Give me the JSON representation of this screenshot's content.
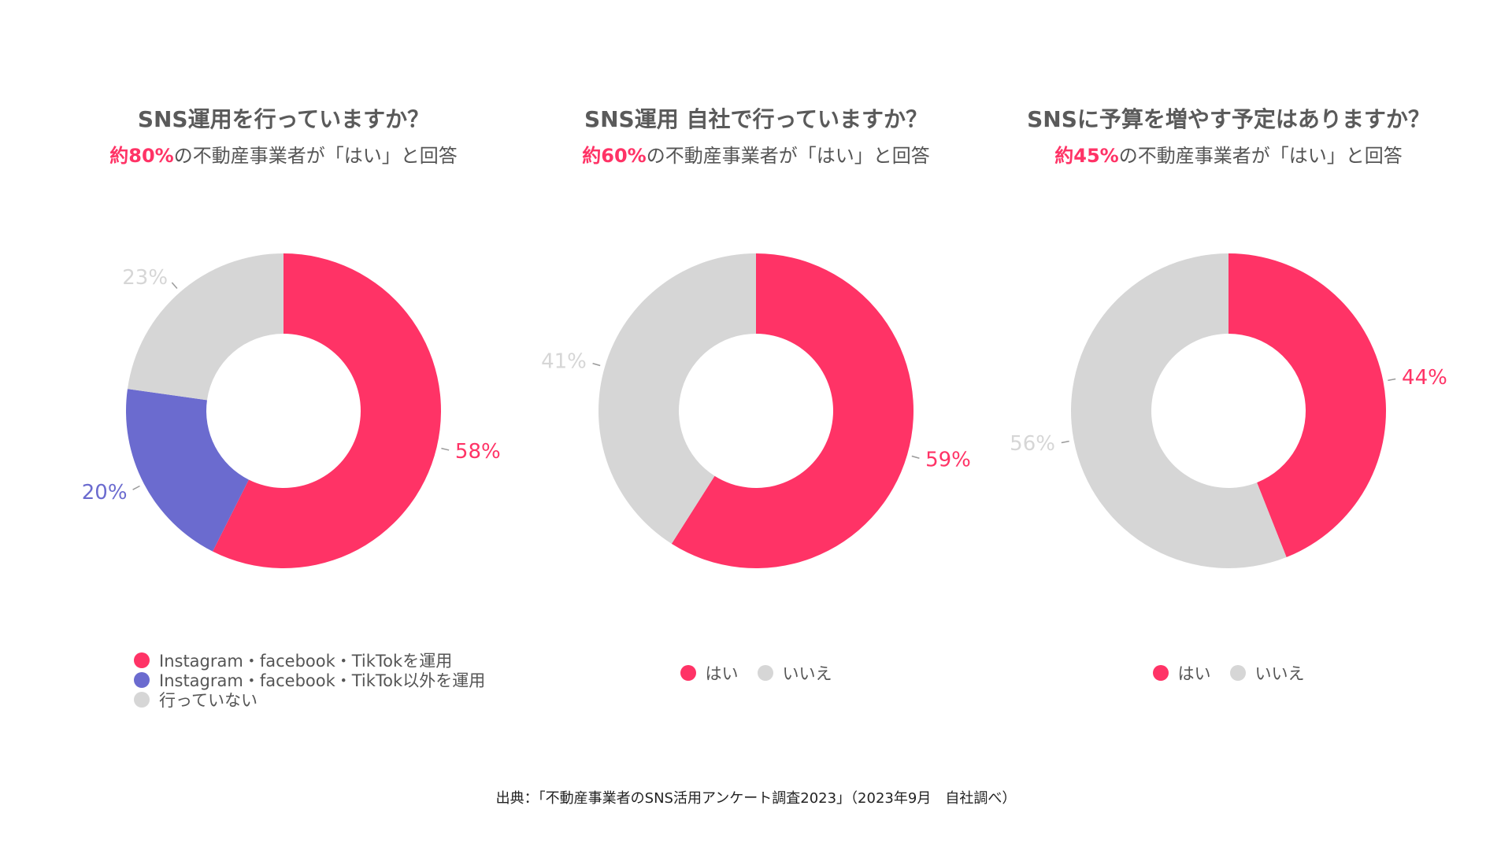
{
  "colors": {
    "accent": "#ff3366",
    "secondary": "#6b6bcf",
    "neutral": "#d6d6d6",
    "title": "#5a5a5a",
    "text": "#555555"
  },
  "panels": [
    {
      "title": "SNS運用を行っていますか？",
      "subtitle_highlight": "約80%",
      "subtitle_rest": "の不動産事業者が「はい」と回答",
      "legend_layout": "vertical",
      "legend": [
        {
          "label": "Instagram・facebook・TikTokを運用",
          "color": "#ff3366"
        },
        {
          "label": "Instagram・facebook・TikTok以外を運用",
          "color": "#6b6bcf"
        },
        {
          "label": "行っていない",
          "color": "#d6d6d6"
        }
      ]
    },
    {
      "title": "SNS運用 自社で行っていますか？",
      "subtitle_highlight": "約60%",
      "subtitle_rest": "の不動産事業者が「はい」と回答",
      "legend_layout": "horizontal",
      "legend": [
        {
          "label": "はい",
          "color": "#ff3366"
        },
        {
          "label": "いいえ",
          "color": "#d6d6d6"
        }
      ]
    },
    {
      "title": "SNSに予算を増やす予定はありますか？",
      "subtitle_highlight": "約45%",
      "subtitle_rest": "の不動産事業者が「はい」と回答",
      "legend_layout": "horizontal",
      "legend": [
        {
          "label": "はい",
          "color": "#ff3366"
        },
        {
          "label": "いいえ",
          "color": "#d6d6d6"
        }
      ]
    }
  ],
  "chart_data": [
    {
      "type": "pie",
      "title": "SNS運用を行っていますか？",
      "donut": true,
      "slices": [
        {
          "label": "Instagram・facebook・TikTokを運用",
          "value": 58,
          "display": "58%",
          "color": "#ff3366"
        },
        {
          "label": "Instagram・facebook・TikTok以外を運用",
          "value": 20,
          "display": "20%",
          "color": "#6b6bcf"
        },
        {
          "label": "行っていない",
          "value": 23,
          "display": "23%",
          "color": "#d6d6d6"
        }
      ]
    },
    {
      "type": "pie",
      "title": "SNS運用 自社で行っていますか？",
      "donut": true,
      "slices": [
        {
          "label": "はい",
          "value": 59,
          "display": "59%",
          "color": "#ff3366"
        },
        {
          "label": "いいえ",
          "value": 41,
          "display": "41%",
          "color": "#d6d6d6"
        }
      ]
    },
    {
      "type": "pie",
      "title": "SNSに予算を増やす予定はありますか？",
      "donut": true,
      "slices": [
        {
          "label": "はい",
          "value": 44,
          "display": "44%",
          "color": "#ff3366"
        },
        {
          "label": "いいえ",
          "value": 56,
          "display": "56%",
          "color": "#d6d6d6"
        }
      ]
    }
  ],
  "source": "出典：「不動産事業者のSNS活用アンケート調査2023」（2023年9月　自社調べ）"
}
